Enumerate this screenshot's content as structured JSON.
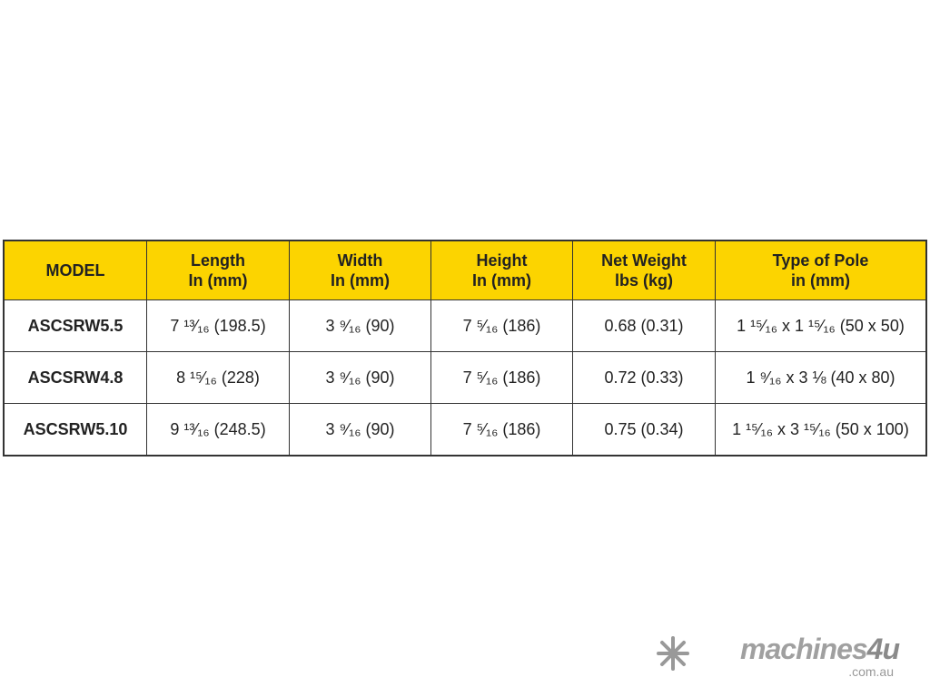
{
  "table": {
    "headers": [
      {
        "line1": "MODEL",
        "line2": ""
      },
      {
        "line1": "Length",
        "line2": "In (mm)"
      },
      {
        "line1": "Width",
        "line2": "In (mm)"
      },
      {
        "line1": "Height",
        "line2": "In (mm)"
      },
      {
        "line1": "Net Weight",
        "line2": "lbs (kg)"
      },
      {
        "line1": "Type of Pole",
        "line2": "in (mm)"
      }
    ],
    "rows": [
      [
        "ASCSRW5.5",
        "7 ¹³⁄₁₆ (198.5)",
        "3 ⁹⁄₁₆ (90)",
        "7 ⁵⁄₁₆ (186)",
        "0.68 (0.31)",
        "1 ¹⁵⁄₁₆ x 1 ¹⁵⁄₁₆ (50 x 50)"
      ],
      [
        "ASCSRW4.8",
        "8 ¹⁵⁄₁₆ (228)",
        "3 ⁹⁄₁₆ (90)",
        "7 ⁵⁄₁₆ (186)",
        "0.72 (0.33)",
        "1 ⁹⁄₁₆ x 3 ⅛ (40 x 80)"
      ],
      [
        "ASCSRW5.10",
        "9 ¹³⁄₁₆ (248.5)",
        "3 ⁹⁄₁₆ (90)",
        "7 ⁵⁄₁₆ (186)",
        "0.75 (0.34)",
        "1 ¹⁵⁄₁₆ x 3 ¹⁵⁄₁₆ (50 x 100)"
      ]
    ],
    "header_color": "#fcd400"
  },
  "watermark": {
    "brand": "machines",
    "brand_num": "4u",
    "domain": ".com.au",
    "icon": "snowflake-logo-icon"
  }
}
